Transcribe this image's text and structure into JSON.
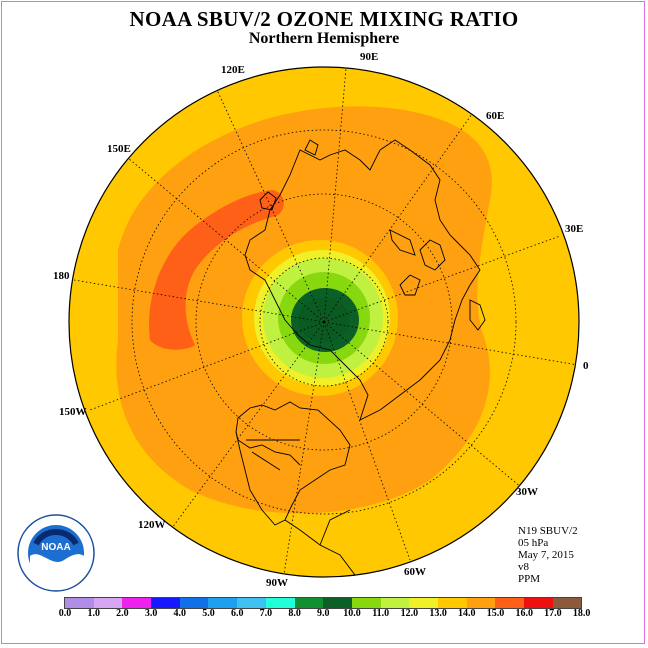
{
  "title": "NOAA SBUV/2 OZONE MIXING RATIO",
  "subtitle": "Northern Hemisphere",
  "longitude_labels": {
    "lon_90e": "90E",
    "lon_120e": "120E",
    "lon_60e": "60E",
    "lon_150e": "150E",
    "lon_30e": "30E",
    "lon_180": "180",
    "lon_0": "0",
    "lon_150w": "150W",
    "lon_30w": "30W",
    "lon_120w": "120W",
    "lon_60w": "60W",
    "lon_90w": "90W"
  },
  "info": {
    "satellite": "N19 SBUV/2",
    "level": "05 hPa",
    "date": "May 7, 2015",
    "version": "v8",
    "units": "PPM"
  },
  "logo": {
    "text": "NOAA",
    "ring_text": "NATIONAL OCEANIC AND ATMOSPHERIC ADMINISTRATION · U.S. DEPARTMENT OF COMMERCE"
  },
  "colorbar": {
    "ticks": [
      "0.0",
      "1.0",
      "2.0",
      "3.0",
      "4.0",
      "5.0",
      "6.0",
      "7.0",
      "8.0",
      "9.0",
      "10.0",
      "11.0",
      "12.0",
      "13.0",
      "14.0",
      "15.0",
      "16.0",
      "17.0",
      "18.0"
    ],
    "colors": [
      "#b08ee8",
      "#d6a6f2",
      "#ee22ee",
      "#1818ff",
      "#1070e8",
      "#1ea0f0",
      "#40c0f0",
      "#20ffd8",
      "#109030",
      "#0a6026",
      "#88d810",
      "#c0f040",
      "#f0f028",
      "#ffc800",
      "#ffa010",
      "#ff6018",
      "#ee1010",
      "#8b5a3c"
    ]
  }
}
